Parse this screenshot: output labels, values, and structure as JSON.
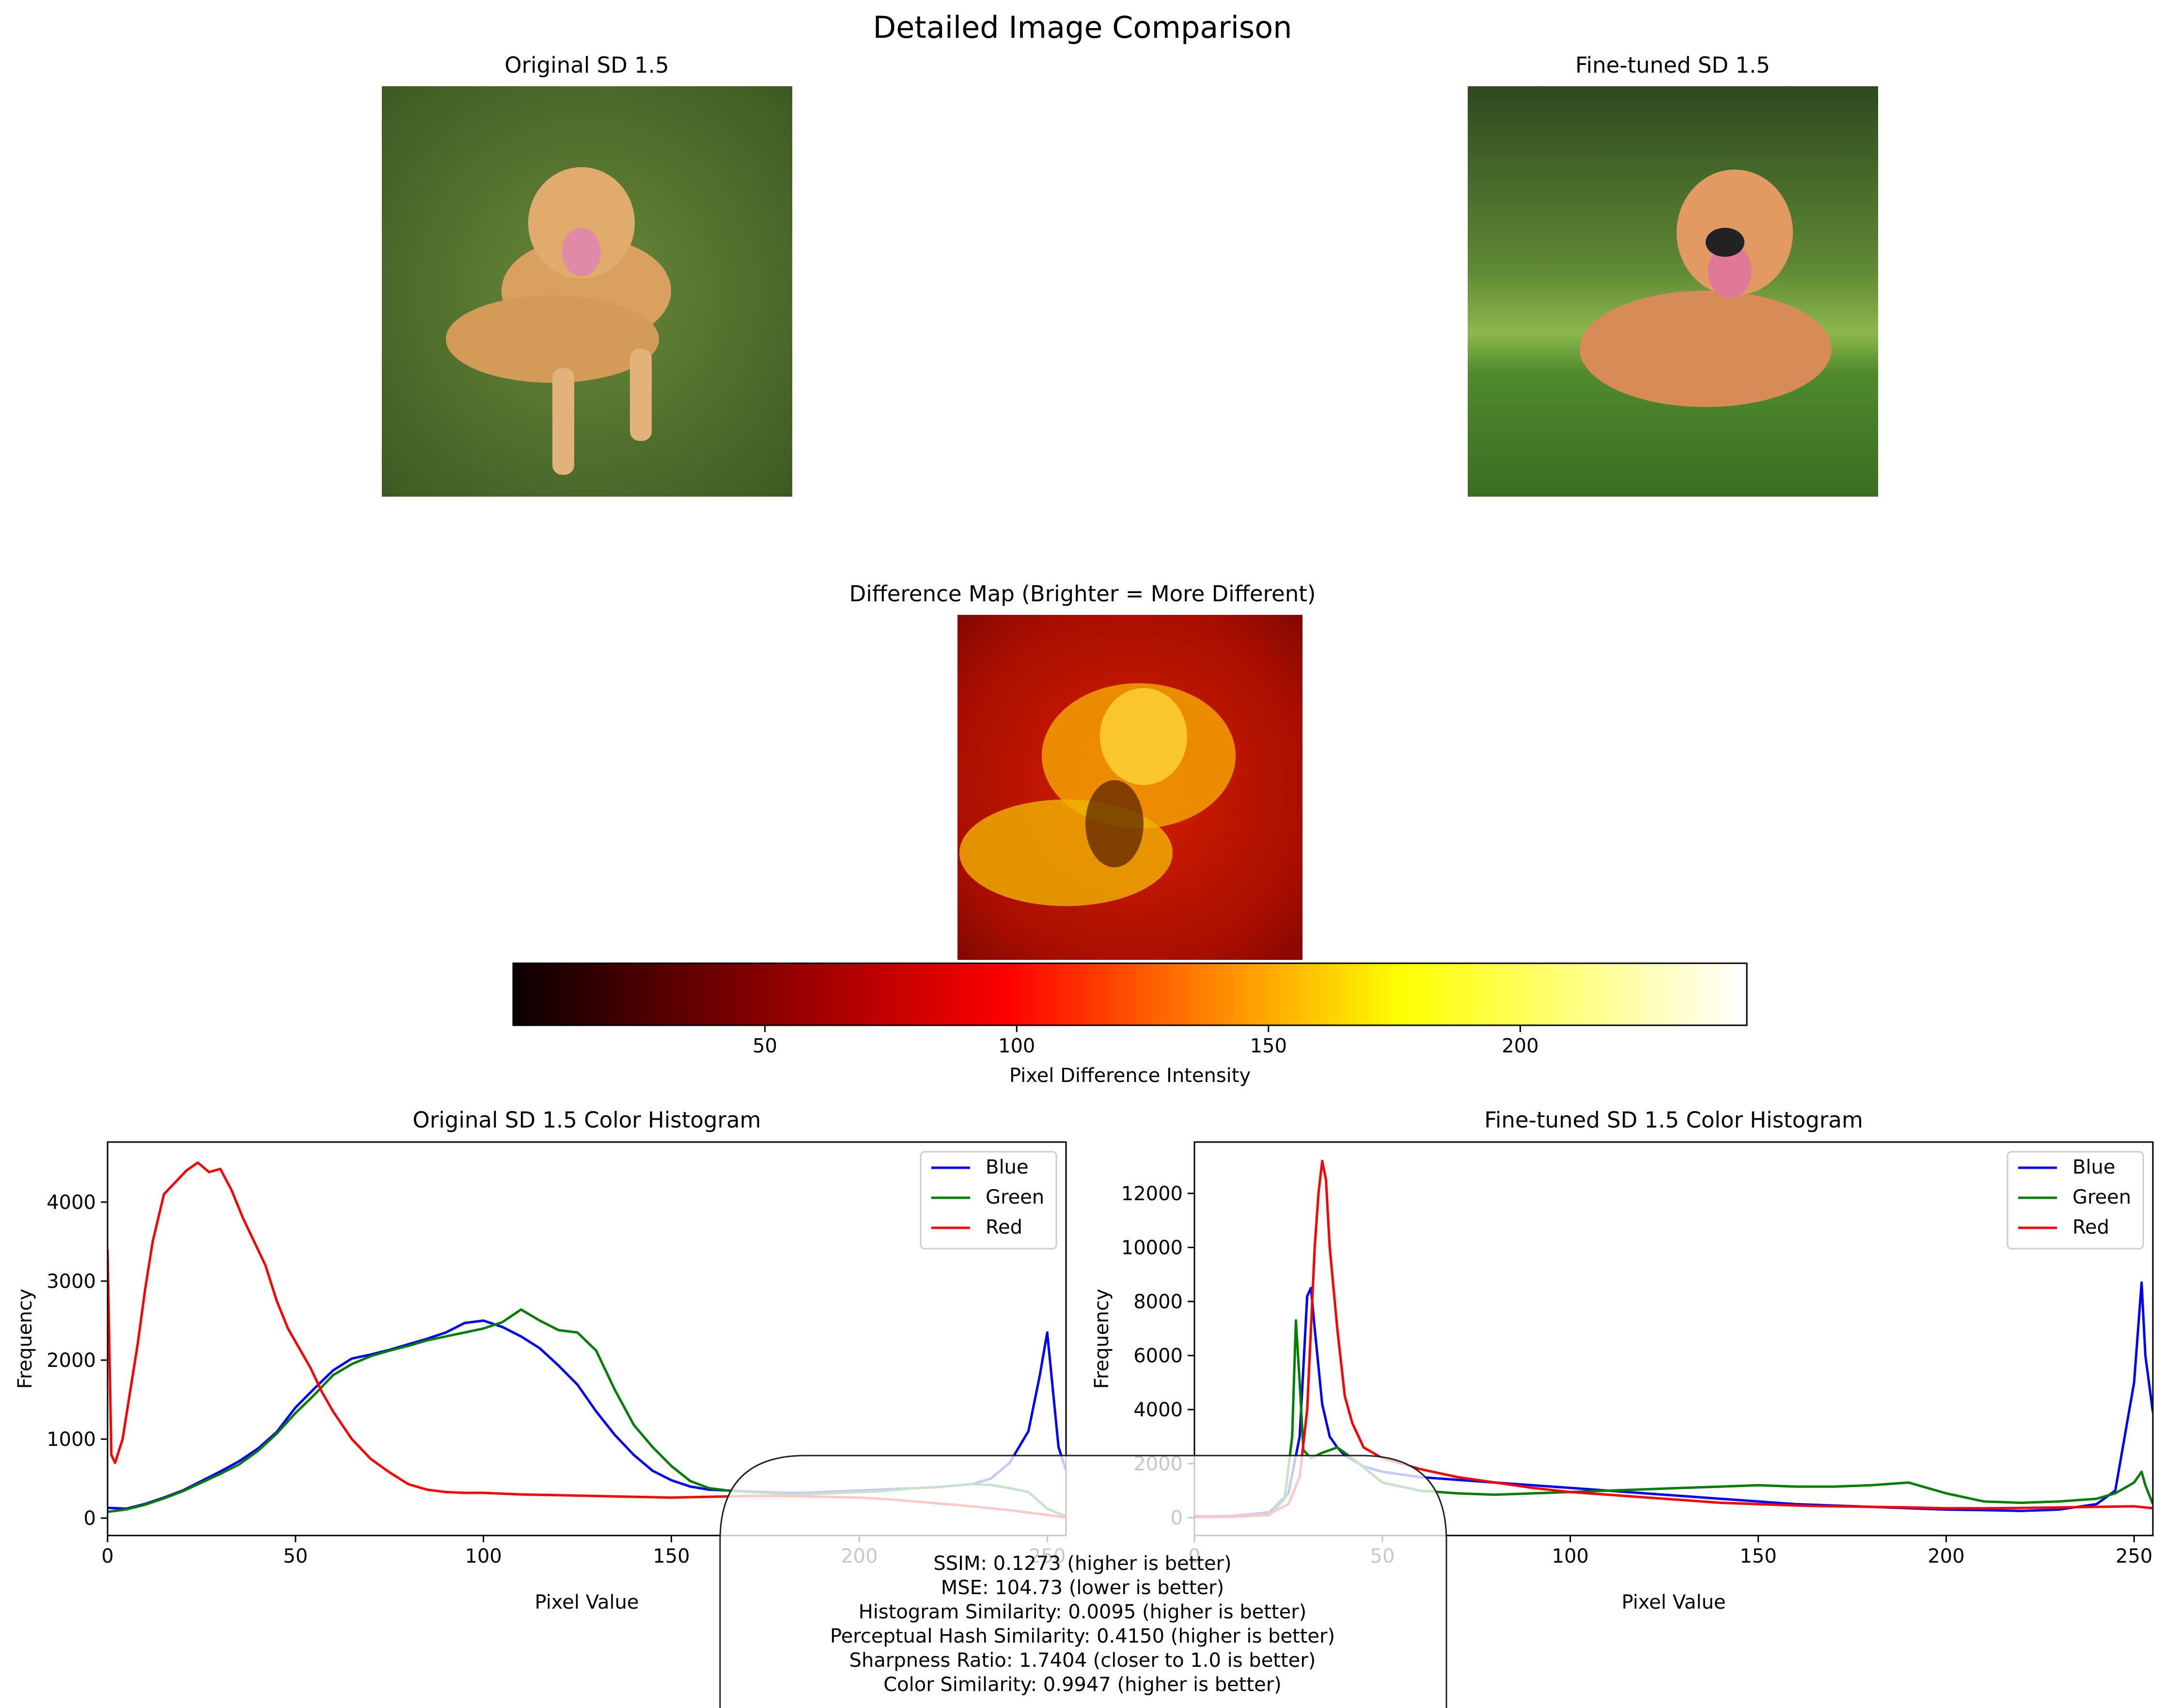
{
  "figure": {
    "title": "Detailed Image Comparison"
  },
  "images": {
    "original": {
      "title": "Original SD 1.5"
    },
    "finetuned": {
      "title": "Fine-tuned SD 1.5"
    },
    "difference": {
      "title": "Difference Map (Brighter = More Different)"
    }
  },
  "colorbar": {
    "label": "Pixel Difference Intensity",
    "ticks": [
      50,
      100,
      150,
      200
    ],
    "range": [
      0,
      245
    ],
    "colormap": "hot",
    "colors": [
      "#000000",
      "#e60000",
      "#ff0000",
      "#ffff00",
      "#ffffff"
    ]
  },
  "chart_data": [
    {
      "type": "line",
      "title": "Original SD 1.5 Color Histogram",
      "xlabel": "Pixel Value",
      "ylabel": "Frequency",
      "xlim": [
        0,
        255
      ],
      "ylim": [
        -220,
        4760
      ],
      "xticks": [
        0,
        50,
        100,
        150,
        200,
        250
      ],
      "yticks": [
        0,
        1000,
        2000,
        3000,
        4000
      ],
      "legend": "top-right",
      "series": [
        {
          "name": "Blue",
          "color": "#0000ff",
          "x": [
            0,
            5,
            10,
            15,
            20,
            25,
            30,
            35,
            40,
            45,
            50,
            55,
            60,
            65,
            70,
            75,
            80,
            85,
            90,
            95,
            100,
            105,
            110,
            115,
            120,
            125,
            130,
            135,
            140,
            145,
            150,
            155,
            160,
            165,
            170,
            175,
            180,
            185,
            190,
            195,
            200,
            205,
            210,
            215,
            220,
            225,
            230,
            235,
            240,
            245,
            248,
            250,
            253,
            255
          ],
          "y": [
            130,
            120,
            180,
            260,
            350,
            470,
            590,
            720,
            880,
            1090,
            1400,
            1640,
            1870,
            2020,
            2070,
            2130,
            2200,
            2270,
            2350,
            2470,
            2500,
            2420,
            2300,
            2150,
            1930,
            1690,
            1350,
            1050,
            800,
            600,
            480,
            400,
            360,
            350,
            340,
            330,
            320,
            320,
            330,
            340,
            350,
            360,
            370,
            380,
            390,
            410,
            430,
            500,
            700,
            1100,
            1800,
            2350,
            900,
            600
          ]
        },
        {
          "name": "Green",
          "color": "#008000",
          "x": [
            0,
            5,
            10,
            15,
            20,
            25,
            30,
            35,
            40,
            45,
            50,
            55,
            60,
            65,
            70,
            75,
            80,
            85,
            90,
            95,
            100,
            105,
            110,
            115,
            120,
            125,
            130,
            135,
            140,
            145,
            150,
            155,
            160,
            165,
            170,
            175,
            180,
            185,
            190,
            195,
            200,
            205,
            210,
            215,
            220,
            225,
            230,
            235,
            240,
            245,
            250,
            255
          ],
          "y": [
            80,
            110,
            170,
            250,
            340,
            450,
            560,
            680,
            850,
            1070,
            1330,
            1560,
            1810,
            1950,
            2050,
            2120,
            2180,
            2250,
            2300,
            2350,
            2400,
            2480,
            2640,
            2500,
            2380,
            2350,
            2120,
            1620,
            1180,
            900,
            660,
            470,
            380,
            350,
            330,
            320,
            300,
            300,
            310,
            320,
            330,
            340,
            360,
            380,
            390,
            410,
            430,
            420,
            380,
            330,
            120,
            20
          ]
        },
        {
          "name": "Red",
          "color": "#ff0000",
          "x": [
            0,
            1,
            2,
            4,
            6,
            8,
            10,
            12,
            15,
            18,
            21,
            24,
            27,
            30,
            33,
            36,
            39,
            42,
            45,
            48,
            51,
            54,
            57,
            60,
            65,
            70,
            75,
            80,
            85,
            90,
            95,
            100,
            110,
            120,
            130,
            140,
            150,
            160,
            170,
            180,
            190,
            200,
            210,
            220,
            230,
            240,
            250,
            255
          ],
          "y": [
            3400,
            800,
            700,
            1000,
            1600,
            2200,
            2900,
            3500,
            4100,
            4250,
            4400,
            4500,
            4380,
            4420,
            4150,
            3800,
            3500,
            3200,
            2750,
            2400,
            2150,
            1900,
            1600,
            1350,
            1000,
            750,
            580,
            430,
            360,
            330,
            320,
            320,
            300,
            290,
            280,
            270,
            260,
            270,
            280,
            280,
            270,
            260,
            230,
            190,
            150,
            100,
            40,
            10
          ]
        }
      ]
    },
    {
      "type": "line",
      "title": "Fine-tuned SD 1.5 Color Histogram",
      "xlabel": "Pixel Value",
      "ylabel": "Frequency",
      "xlim": [
        0,
        255
      ],
      "ylim": [
        -660,
        13900
      ],
      "xticks": [
        0,
        50,
        100,
        150,
        200,
        250
      ],
      "yticks": [
        0,
        2000,
        4000,
        6000,
        8000,
        10000,
        12000
      ],
      "legend": "top-right",
      "series": [
        {
          "name": "Blue",
          "color": "#0000ff",
          "x": [
            0,
            10,
            20,
            25,
            28,
            30,
            31,
            32,
            34,
            36,
            38,
            40,
            45,
            50,
            55,
            60,
            70,
            80,
            90,
            100,
            110,
            120,
            130,
            140,
            150,
            160,
            170,
            180,
            190,
            200,
            210,
            220,
            230,
            240,
            245,
            250,
            252,
            253,
            255
          ],
          "y": [
            50,
            60,
            200,
            900,
            3000,
            8200,
            8500,
            7000,
            4200,
            3000,
            2600,
            2300,
            1900,
            1700,
            1600,
            1500,
            1400,
            1300,
            1200,
            1100,
            1000,
            900,
            800,
            700,
            600,
            500,
            450,
            400,
            350,
            300,
            280,
            250,
            300,
            500,
            1000,
            5000,
            8700,
            6000,
            3900
          ]
        },
        {
          "name": "Green",
          "color": "#008000",
          "x": [
            0,
            10,
            20,
            24,
            26,
            27,
            28,
            29,
            31,
            34,
            38,
            42,
            50,
            60,
            70,
            80,
            90,
            100,
            110,
            120,
            130,
            140,
            150,
            160,
            170,
            180,
            185,
            190,
            200,
            210,
            220,
            230,
            240,
            245,
            250,
            252,
            253,
            255
          ],
          "y": [
            20,
            30,
            100,
            700,
            3000,
            7300,
            5000,
            2500,
            2200,
            2400,
            2600,
            2200,
            1300,
            1000,
            900,
            850,
            900,
            950,
            1000,
            1050,
            1100,
            1150,
            1200,
            1150,
            1150,
            1200,
            1250,
            1300,
            900,
            600,
            550,
            600,
            700,
            900,
            1300,
            1700,
            1200,
            500
          ]
        },
        {
          "name": "Red",
          "color": "#ff0000",
          "x": [
            0,
            10,
            20,
            25,
            28,
            30,
            31,
            32,
            33,
            34,
            35,
            36,
            38,
            40,
            42,
            45,
            50,
            55,
            60,
            70,
            80,
            90,
            100,
            110,
            120,
            130,
            140,
            150,
            160,
            170,
            180,
            190,
            200,
            210,
            220,
            230,
            240,
            250,
            255
          ],
          "y": [
            20,
            30,
            150,
            500,
            1500,
            4000,
            7000,
            10000,
            12000,
            13200,
            12500,
            10000,
            7000,
            4500,
            3500,
            2600,
            2200,
            2000,
            1800,
            1500,
            1300,
            1100,
            950,
            850,
            750,
            650,
            550,
            500,
            450,
            420,
            400,
            380,
            350,
            350,
            360,
            380,
            400,
            420,
            350
          ]
        }
      ]
    }
  ],
  "metrics": {
    "lines": [
      "SSIM: 0.1273 (higher is better)",
      "MSE: 104.73 (lower is better)",
      "Histogram Similarity: 0.0095 (higher is better)",
      "Perceptual Hash Similarity: 0.4150 (higher is better)",
      "Sharpness Ratio: 1.7404 (closer to 1.0 is better)",
      "Color Similarity: 0.9947 (higher is better)"
    ]
  }
}
